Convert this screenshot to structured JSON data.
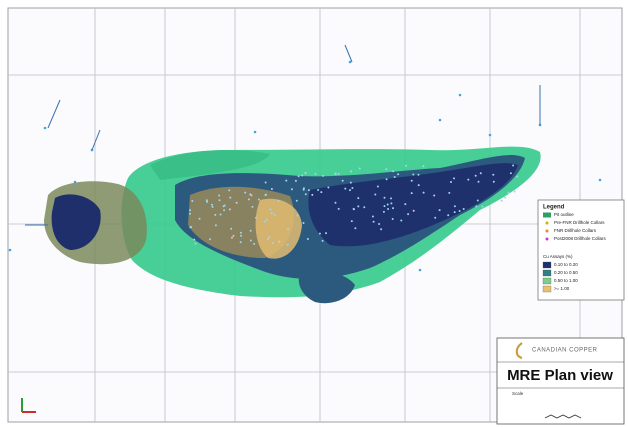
{
  "map": {
    "legend": {
      "title": "Legend",
      "items": [
        {
          "label": "Pit outline",
          "color": "#2f9e6a",
          "shape": "rect"
        },
        {
          "label": "Pre-FNR Drillhole Collars",
          "color": "#c9b400",
          "shape": "dot"
        },
        {
          "label": "FNR Drillhole Collars",
          "color": "#e58a2c",
          "shape": "dot"
        },
        {
          "label": "Post2008 Drillhole Collars",
          "color": "#c33cc9",
          "shape": "dot"
        }
      ],
      "assay_title": "Cu Assays (%)",
      "assays": [
        {
          "label": "0.10 to 0.20",
          "color": "#1f2f6b"
        },
        {
          "label": "0.20 to 0.50",
          "color": "#2f7f86"
        },
        {
          "label": "0.50 to 1.00",
          "color": "#7ccf8a"
        },
        {
          "label": ">= 1.00",
          "color": "#e8c070"
        }
      ]
    },
    "title_block": {
      "company": "CANADIAN COPPER",
      "title": "MRE Plan view",
      "scale_label": "Scale"
    }
  }
}
